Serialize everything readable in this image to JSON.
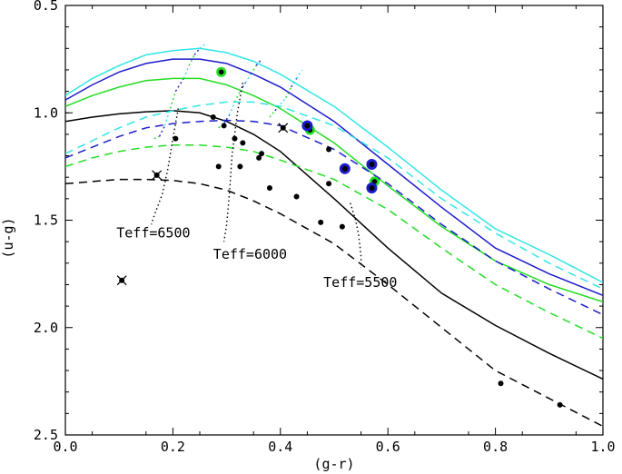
{
  "chart_data": {
    "type": "line",
    "title": "",
    "xlabel": "(g-r)",
    "ylabel": "(u-g)",
    "xlim": [
      0.0,
      1.0
    ],
    "ylim": [
      2.5,
      0.5
    ],
    "y_inverted": true,
    "x_ticks": [
      {
        "value": 0.0,
        "label": "0.0"
      },
      {
        "value": 0.2,
        "label": "0.2"
      },
      {
        "value": 0.4,
        "label": "0.4"
      },
      {
        "value": 0.6,
        "label": "0.6"
      },
      {
        "value": 0.8,
        "label": "0.8"
      },
      {
        "value": 1.0,
        "label": "1.0"
      }
    ],
    "y_ticks": [
      {
        "value": 0.5,
        "label": "0.5"
      },
      {
        "value": 1.0,
        "label": "1.0"
      },
      {
        "value": 1.5,
        "label": "1.5"
      },
      {
        "value": 2.0,
        "label": "2.0"
      },
      {
        "value": 2.5,
        "label": "2.5"
      }
    ],
    "series": [
      {
        "name": "cyan-solid",
        "color": "#33e5e5",
        "dash": "solid",
        "x": [
          0.0,
          0.05,
          0.1,
          0.15,
          0.2,
          0.25,
          0.3,
          0.35,
          0.4,
          0.5,
          0.6,
          0.7,
          0.8,
          0.9,
          1.0
        ],
        "y": [
          0.92,
          0.84,
          0.78,
          0.73,
          0.71,
          0.7,
          0.72,
          0.76,
          0.82,
          0.97,
          1.16,
          1.36,
          1.54,
          1.66,
          1.79
        ]
      },
      {
        "name": "blue-solid",
        "color": "#1c1ccc",
        "dash": "solid",
        "x": [
          0.0,
          0.05,
          0.1,
          0.15,
          0.2,
          0.25,
          0.3,
          0.35,
          0.4,
          0.5,
          0.6,
          0.7,
          0.8,
          0.9,
          1.0
        ],
        "y": [
          0.94,
          0.87,
          0.81,
          0.77,
          0.75,
          0.75,
          0.77,
          0.82,
          0.88,
          1.04,
          1.24,
          1.44,
          1.63,
          1.75,
          1.85
        ]
      },
      {
        "name": "green-solid",
        "color": "#22dd22",
        "dash": "solid",
        "x": [
          0.0,
          0.05,
          0.1,
          0.15,
          0.2,
          0.25,
          0.3,
          0.35,
          0.4,
          0.5,
          0.6,
          0.7,
          0.8,
          0.9,
          1.0
        ],
        "y": [
          0.97,
          0.92,
          0.88,
          0.85,
          0.84,
          0.84,
          0.87,
          0.92,
          0.98,
          1.14,
          1.34,
          1.53,
          1.69,
          1.8,
          1.88
        ]
      },
      {
        "name": "black-solid",
        "color": "#000000",
        "dash": "solid",
        "x": [
          0.0,
          0.05,
          0.1,
          0.15,
          0.2,
          0.25,
          0.3,
          0.35,
          0.4,
          0.5,
          0.6,
          0.7,
          0.8,
          0.9,
          1.0
        ],
        "y": [
          1.04,
          1.02,
          1.005,
          0.995,
          0.99,
          1.0,
          1.04,
          1.1,
          1.18,
          1.4,
          1.63,
          1.84,
          1.99,
          2.12,
          2.24
        ]
      },
      {
        "name": "cyan-dashed",
        "color": "#33e5e5",
        "dash": "dashed",
        "x": [
          0.0,
          0.05,
          0.1,
          0.15,
          0.2,
          0.25,
          0.3,
          0.35,
          0.4,
          0.5,
          0.6,
          0.7,
          0.8,
          0.9,
          1.0
        ],
        "y": [
          1.19,
          1.13,
          1.07,
          1.02,
          0.99,
          0.965,
          0.95,
          0.95,
          0.97,
          1.06,
          1.21,
          1.4,
          1.56,
          1.7,
          1.82
        ]
      },
      {
        "name": "blue-dashed",
        "color": "#1c1ccc",
        "dash": "dashed",
        "x": [
          0.0,
          0.05,
          0.1,
          0.15,
          0.2,
          0.25,
          0.3,
          0.35,
          0.4,
          0.5,
          0.6,
          0.7,
          0.8,
          0.9,
          1.0
        ],
        "y": [
          1.21,
          1.16,
          1.11,
          1.07,
          1.05,
          1.04,
          1.035,
          1.04,
          1.06,
          1.17,
          1.33,
          1.52,
          1.69,
          1.82,
          1.94
        ]
      },
      {
        "name": "green-dashed",
        "color": "#22dd22",
        "dash": "dashed",
        "x": [
          0.0,
          0.05,
          0.1,
          0.15,
          0.2,
          0.25,
          0.3,
          0.35,
          0.4,
          0.5,
          0.6,
          0.7,
          0.8,
          0.9,
          1.0
        ],
        "y": [
          1.25,
          1.21,
          1.18,
          1.16,
          1.15,
          1.15,
          1.16,
          1.18,
          1.22,
          1.31,
          1.45,
          1.63,
          1.8,
          1.93,
          2.05
        ]
      },
      {
        "name": "black-dashed",
        "color": "#000000",
        "dash": "dashed",
        "x": [
          0.0,
          0.05,
          0.1,
          0.15,
          0.2,
          0.25,
          0.3,
          0.35,
          0.4,
          0.5,
          0.6,
          0.7,
          0.8,
          0.9,
          1.0
        ],
        "y": [
          1.33,
          1.32,
          1.31,
          1.31,
          1.315,
          1.33,
          1.36,
          1.41,
          1.47,
          1.61,
          1.8,
          2.0,
          2.2,
          2.33,
          2.46
        ]
      }
    ],
    "iso_temperature_lines": [
      {
        "name": "teff-6500-line",
        "x": [
          0.165,
          0.175,
          0.185,
          0.195,
          0.205,
          0.22,
          0.23,
          0.24,
          0.25,
          0.26
        ],
        "y": [
          1.12,
          1.11,
          1.06,
          0.98,
          0.9,
          0.84,
          0.78,
          0.73,
          0.7,
          0.68
        ],
        "colors": [
          "#22dd22",
          "#1c1ccc",
          "#33e5e5",
          "#22dd22",
          "#1c1ccc",
          "#33e5e5",
          "#22dd22",
          "#1c1ccc",
          "#33e5e5"
        ]
      },
      {
        "name": "teff-6000-line",
        "x": [
          0.285,
          0.295,
          0.305,
          0.315,
          0.325,
          0.335,
          0.345,
          0.355,
          0.365
        ],
        "y": [
          1.07,
          1.05,
          1.01,
          0.95,
          0.9,
          0.86,
          0.82,
          0.78,
          0.75
        ],
        "colors": [
          "#22dd22",
          "#1c1ccc",
          "#33e5e5",
          "#22dd22",
          "#1c1ccc",
          "#33e5e5",
          "#22dd22",
          "#1c1ccc"
        ]
      },
      {
        "name": "teff-5500-line",
        "x": [
          0.38,
          0.39,
          0.4,
          0.41,
          0.42,
          0.43,
          0.44
        ],
        "y": [
          1.02,
          0.99,
          0.96,
          0.93,
          0.88,
          0.84,
          0.8
        ],
        "colors": [
          "#22dd22",
          "#1c1ccc",
          "#33e5e5",
          "#22dd22",
          "#1c1ccc",
          "#33e5e5"
        ]
      }
    ],
    "teff_curves": [
      {
        "label": "Teff=6500",
        "x": [
          0.21,
          0.2,
          0.19,
          0.18,
          0.165,
          0.16
        ],
        "y": [
          0.98,
          1.12,
          1.27,
          1.38,
          1.48,
          1.52
        ]
      },
      {
        "label": "Teff=6000",
        "x": [
          0.33,
          0.32,
          0.31,
          0.305,
          0.3,
          0.295
        ],
        "y": [
          0.86,
          1.0,
          1.2,
          1.38,
          1.52,
          1.6
        ]
      },
      {
        "label": "Teff=5500",
        "x": [
          0.53,
          0.54,
          0.545,
          0.548,
          0.55,
          0.55
        ],
        "y": [
          1.42,
          1.5,
          1.56,
          1.62,
          1.67,
          1.72
        ]
      }
    ],
    "annotations": [
      {
        "text": "Teff=6500",
        "x": 0.095,
        "y": 1.58
      },
      {
        "text": "Teff=6000",
        "x": 0.275,
        "y": 1.68
      },
      {
        "text": "Teff=5500",
        "x": 0.48,
        "y": 1.81
      }
    ],
    "points_black": [
      {
        "x": 0.205,
        "y": 1.12
      },
      {
        "x": 0.275,
        "y": 1.02
      },
      {
        "x": 0.295,
        "y": 1.06
      },
      {
        "x": 0.315,
        "y": 1.12
      },
      {
        "x": 0.33,
        "y": 1.14
      },
      {
        "x": 0.36,
        "y": 1.21
      },
      {
        "x": 0.365,
        "y": 1.19
      },
      {
        "x": 0.285,
        "y": 1.25
      },
      {
        "x": 0.325,
        "y": 1.25
      },
      {
        "x": 0.38,
        "y": 1.35
      },
      {
        "x": 0.43,
        "y": 1.39
      },
      {
        "x": 0.49,
        "y": 1.17
      },
      {
        "x": 0.49,
        "y": 1.33
      },
      {
        "x": 0.475,
        "y": 1.51
      },
      {
        "x": 0.515,
        "y": 1.53
      },
      {
        "x": 0.81,
        "y": 2.26
      },
      {
        "x": 0.92,
        "y": 2.36
      }
    ],
    "points_cross": [
      {
        "x": 0.17,
        "y": 1.29
      },
      {
        "x": 0.405,
        "y": 1.07
      },
      {
        "x": 0.105,
        "y": 1.78
      }
    ],
    "points_green_ring": [
      {
        "x": 0.29,
        "y": 0.81
      },
      {
        "x": 0.455,
        "y": 1.08
      },
      {
        "x": 0.575,
        "y": 1.32
      }
    ],
    "points_blue_ring": [
      {
        "x": 0.45,
        "y": 1.06
      },
      {
        "x": 0.52,
        "y": 1.26
      },
      {
        "x": 0.57,
        "y": 1.24
      },
      {
        "x": 0.57,
        "y": 1.35
      }
    ]
  }
}
